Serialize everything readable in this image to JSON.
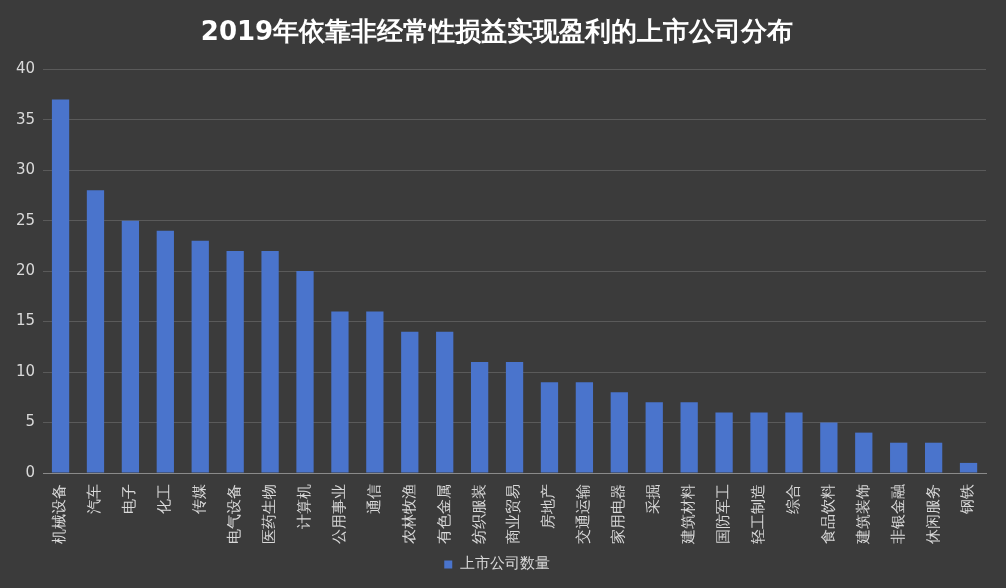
{
  "chart_data": {
    "type": "bar",
    "title": "2019年依靠非经常性损益实现盈利的上市公司分布",
    "categories": [
      "机械设备",
      "汽车",
      "电子",
      "化工",
      "传媒",
      "电气设备",
      "医药生物",
      "计算机",
      "公用事业",
      "通信",
      "农林牧渔",
      "有色金属",
      "纺织服装",
      "商业贸易",
      "房地产",
      "交通运输",
      "家用电器",
      "采掘",
      "建筑材料",
      "国防军工",
      "轻工制造",
      "综合",
      "食品饮料",
      "建筑装饰",
      "非银金融",
      "休闲服务",
      "钢铁"
    ],
    "series": [
      {
        "name": "上市公司数量",
        "color": "#4a74cc",
        "values": [
          37,
          28,
          25,
          24,
          23,
          22,
          22,
          20,
          16,
          16,
          14,
          14,
          11,
          11,
          9,
          9,
          8,
          7,
          7,
          6,
          6,
          6,
          5,
          4,
          3,
          3,
          1
        ]
      }
    ],
    "ylim": [
      0,
      40
    ],
    "yticks": [
      0,
      5,
      10,
      15,
      20,
      25,
      30,
      35,
      40
    ],
    "grid": "y",
    "legend": "bottom"
  }
}
